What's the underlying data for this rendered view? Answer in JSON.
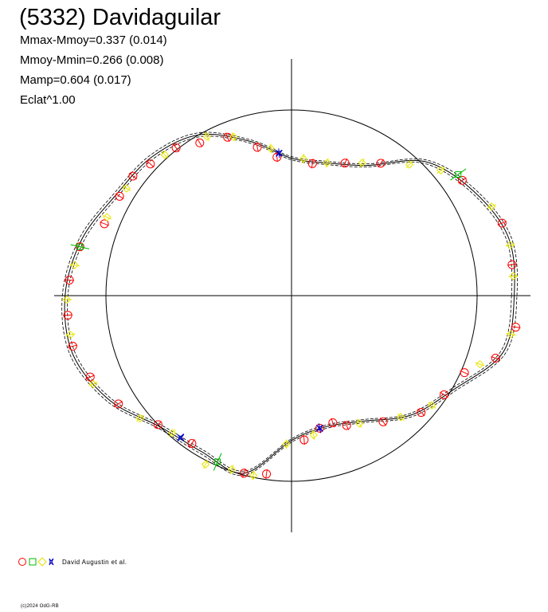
{
  "header": {
    "title": "(5332) Davidaguilar",
    "stats": [
      "Mmax-Mmoy=0.337 (0.014)",
      "Mmoy-Mmin=0.266 (0.008)",
      "Mamp=0.604 (0.017)",
      "Eclat^1.00"
    ]
  },
  "legend": {
    "observer": "David Augustin et al."
  },
  "footer": {
    "copyright": "(c)2024 OdG-RB"
  },
  "colors": {
    "axis": "#000000",
    "curve": "#000000",
    "circle_marker": "#ff0000",
    "square_marker": "#00bb00",
    "diamond_marker": "#ffff00",
    "star_marker": "#0000cc"
  },
  "chart_data": {
    "type": "polar-lightcurve",
    "title": "(5332) Davidaguilar",
    "reference_circle_magnitude_offset": 0,
    "axes": {
      "x_range": [
        -1.3,
        1.3
      ],
      "y_range": [
        -1.3,
        1.3
      ],
      "grid": false
    },
    "curve": {
      "angle_deg": [
        0,
        15,
        30,
        45,
        60,
        75,
        90,
        105,
        120,
        135,
        150,
        165,
        180,
        195,
        210,
        225,
        240,
        255,
        270,
        285,
        300,
        315,
        330,
        345
      ],
      "radius": [
        1.2,
        1.21,
        1.13,
        1.02,
        0.81,
        0.74,
        0.74,
        0.86,
        1.0,
        1.06,
        1.09,
        1.17,
        1.22,
        1.22,
        1.13,
        1.0,
        0.97,
        0.99,
        0.78,
        0.73,
        0.78,
        0.91,
        1.01,
        1.18
      ]
    },
    "series": [
      {
        "name": "David Augustin et al.",
        "marker": "circle",
        "angles_deg": [
          8,
          19,
          34,
          56,
          68,
          81,
          96,
          103,
          112,
          121,
          128,
          137,
          143,
          150,
          159,
          167,
          176,
          185,
          193,
          202,
          212,
          224,
          236,
          255,
          262,
          275,
          282,
          288,
          293,
          306,
          318,
          327,
          336,
          343,
          352
        ],
        "radius": [
          1.2,
          1.2,
          1.11,
          0.86,
          0.77,
          0.72,
          0.75,
          0.82,
          0.92,
          0.96,
          1.01,
          1.04,
          1.07,
          1.07,
          1.08,
          1.17,
          1.2,
          1.21,
          1.21,
          1.17,
          1.1,
          1.0,
          0.96,
          0.99,
          0.97,
          0.78,
          0.73,
          0.72,
          0.76,
          0.84,
          0.94,
          0.98,
          1.02,
          1.15,
          1.22
        ]
      },
      {
        "name": "David Augustin et al.",
        "marker": "square",
        "angles_deg": [
          36,
          167,
          246
        ],
        "radius": [
          1.11,
          1.17,
          0.98
        ]
      },
      {
        "name": "David Augustin et al.",
        "marker": "diamond",
        "angles_deg": [
          5,
          13,
          24,
          40,
          48,
          62,
          75,
          85,
          98,
          110,
          118,
          132,
          147,
          157,
          172,
          181,
          190,
          204,
          219,
          229,
          243,
          251,
          258,
          268,
          279,
          298,
          312,
          322,
          340,
          350
        ],
        "radius": [
          1.2,
          1.21,
          1.18,
          1.05,
          0.95,
          0.81,
          0.74,
          0.74,
          0.8,
          0.91,
          0.97,
          1.02,
          1.06,
          1.08,
          1.18,
          1.21,
          1.21,
          1.17,
          1.05,
          0.98,
          1.02,
          0.99,
          0.99,
          0.8,
          0.76,
          0.78,
          0.88,
          0.96,
          1.08,
          1.2
        ]
      },
      {
        "name": "David Augustin et al.",
        "marker": "star",
        "angles_deg": [
          95,
          232,
          282
        ],
        "radius": [
          0.77,
          0.97,
          0.73
        ]
      }
    ]
  }
}
